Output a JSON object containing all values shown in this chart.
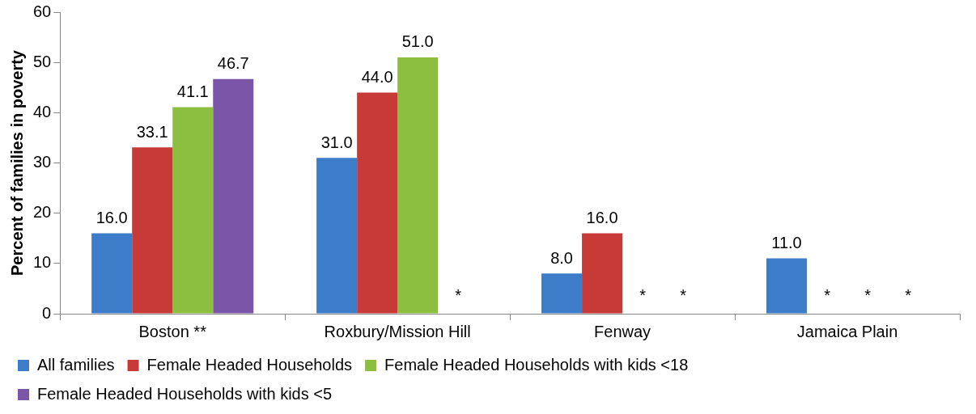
{
  "chart_data": {
    "type": "bar",
    "ylabel": "Percent of families in poverty",
    "categories": [
      "Boston **",
      "Roxbury/Mission Hill",
      "Fenway",
      "Jamaica Plain"
    ],
    "series": [
      {
        "name": "All families",
        "color": "#3d7cc9",
        "values": [
          16.0,
          31.0,
          8.0,
          11.0
        ],
        "value_labels": [
          "16.0",
          "31.0",
          "8.0",
          "11.0"
        ]
      },
      {
        "name": "Female Headed Households",
        "color": "#c83a38",
        "values": [
          33.1,
          44.0,
          16.0,
          null
        ],
        "value_labels": [
          "33.1",
          "44.0",
          "16.0",
          "*"
        ]
      },
      {
        "name": "Female Headed Households with kids <18",
        "color": "#8cbf3f",
        "values": [
          41.1,
          51.0,
          null,
          null
        ],
        "value_labels": [
          "41.1",
          "51.0",
          "*",
          "*"
        ]
      },
      {
        "name": "Female Headed Households with kids <5",
        "color": "#7b56a8",
        "values": [
          46.7,
          null,
          null,
          null
        ],
        "value_labels": [
          "46.7",
          "*",
          "*",
          "*"
        ]
      }
    ],
    "ylim": [
      0,
      60
    ],
    "yticks": [
      0,
      10,
      20,
      30,
      40,
      50,
      60
    ],
    "grid": false,
    "legend": "bottom"
  }
}
